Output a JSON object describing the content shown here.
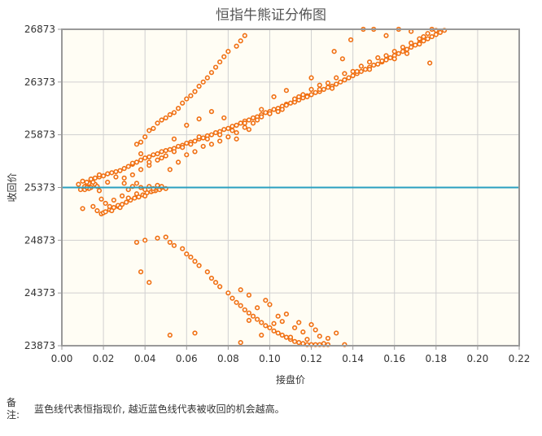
{
  "note": {
    "label": "备注:",
    "text": "蓝色线代表恒指现价, 越近蓝色线代表被收回的机会越高。"
  },
  "colors": {
    "plot_bg": "#fffdf4",
    "point": "#f07012",
    "reference_line": "#2aa0c0",
    "grid": "#d0d0d0",
    "frame": "#999999"
  },
  "chart_data": {
    "type": "scatter",
    "title": "恒指牛熊证分佈图",
    "xlabel": "接盘价",
    "ylabel": "收回价",
    "xlim": [
      0,
      0.22
    ],
    "ylim": [
      23873,
      26873
    ],
    "x_ticks": [
      "0.00",
      "0.02",
      "0.04",
      "0.06",
      "0.08",
      "0.10",
      "0.12",
      "0.14",
      "0.16",
      "0.18",
      "0.20",
      "0.22"
    ],
    "y_ticks": [
      "23873",
      "24373",
      "24873",
      "25373",
      "25873",
      "26373",
      "26873"
    ],
    "grid": true,
    "reference_line": {
      "orientation": "horizontal",
      "y": 25373
    },
    "points": [
      [
        0.01,
        25173
      ],
      [
        0.011,
        25353
      ],
      [
        0.012,
        25393
      ],
      [
        0.013,
        25413
      ],
      [
        0.014,
        25373
      ],
      [
        0.016,
        25403
      ],
      [
        0.018,
        25343
      ],
      [
        0.015,
        25193
      ],
      [
        0.017,
        25153
      ],
      [
        0.019,
        25123
      ],
      [
        0.02,
        25133
      ],
      [
        0.021,
        25143
      ],
      [
        0.023,
        25163
      ],
      [
        0.025,
        25183
      ],
      [
        0.027,
        25193
      ],
      [
        0.029,
        25213
      ],
      [
        0.031,
        25233
      ],
      [
        0.033,
        25253
      ],
      [
        0.035,
        25273
      ],
      [
        0.037,
        25283
      ],
      [
        0.039,
        25303
      ],
      [
        0.041,
        25323
      ],
      [
        0.043,
        25333
      ],
      [
        0.045,
        25343
      ],
      [
        0.047,
        25353
      ],
      [
        0.012,
        25423
      ],
      [
        0.014,
        25443
      ],
      [
        0.016,
        25463
      ],
      [
        0.018,
        25473
      ],
      [
        0.02,
        25483
      ],
      [
        0.022,
        25503
      ],
      [
        0.024,
        25513
      ],
      [
        0.026,
        25523
      ],
      [
        0.028,
        25533
      ],
      [
        0.03,
        25553
      ],
      [
        0.032,
        25573
      ],
      [
        0.034,
        25593
      ],
      [
        0.036,
        25613
      ],
      [
        0.038,
        25633
      ],
      [
        0.04,
        25653
      ],
      [
        0.042,
        25663
      ],
      [
        0.044,
        25683
      ],
      [
        0.046,
        25693
      ],
      [
        0.048,
        25713
      ],
      [
        0.05,
        25723
      ],
      [
        0.052,
        25733
      ],
      [
        0.054,
        25743
      ],
      [
        0.056,
        25763
      ],
      [
        0.058,
        25773
      ],
      [
        0.06,
        25793
      ],
      [
        0.062,
        25803
      ],
      [
        0.064,
        25813
      ],
      [
        0.066,
        25833
      ],
      [
        0.068,
        25843
      ],
      [
        0.07,
        25863
      ],
      [
        0.072,
        25873
      ],
      [
        0.074,
        25893
      ],
      [
        0.076,
        25903
      ],
      [
        0.078,
        25923
      ],
      [
        0.08,
        25933
      ],
      [
        0.082,
        25953
      ],
      [
        0.084,
        25963
      ],
      [
        0.086,
        25983
      ],
      [
        0.088,
        26003
      ],
      [
        0.09,
        26013
      ],
      [
        0.092,
        26033
      ],
      [
        0.094,
        26043
      ],
      [
        0.096,
        26063
      ],
      [
        0.098,
        26083
      ],
      [
        0.1,
        26093
      ],
      [
        0.102,
        26113
      ],
      [
        0.104,
        26123
      ],
      [
        0.106,
        26143
      ],
      [
        0.108,
        26163
      ],
      [
        0.11,
        26173
      ],
      [
        0.112,
        26193
      ],
      [
        0.114,
        26203
      ],
      [
        0.116,
        26223
      ],
      [
        0.118,
        26243
      ],
      [
        0.12,
        26253
      ],
      [
        0.122,
        26273
      ],
      [
        0.124,
        26283
      ],
      [
        0.126,
        26303
      ],
      [
        0.128,
        26323
      ],
      [
        0.13,
        26333
      ],
      [
        0.132,
        26353
      ],
      [
        0.134,
        26373
      ],
      [
        0.136,
        26393
      ],
      [
        0.138,
        26413
      ],
      [
        0.14,
        26433
      ],
      [
        0.142,
        26453
      ],
      [
        0.144,
        26473
      ],
      [
        0.146,
        26493
      ],
      [
        0.148,
        26513
      ],
      [
        0.15,
        26533
      ],
      [
        0.152,
        26543
      ],
      [
        0.154,
        26563
      ],
      [
        0.156,
        26583
      ],
      [
        0.158,
        26603
      ],
      [
        0.16,
        26623
      ],
      [
        0.162,
        26643
      ],
      [
        0.164,
        26663
      ],
      [
        0.166,
        26683
      ],
      [
        0.168,
        26703
      ],
      [
        0.17,
        26723
      ],
      [
        0.172,
        26743
      ],
      [
        0.174,
        26763
      ],
      [
        0.176,
        26783
      ],
      [
        0.178,
        26803
      ],
      [
        0.18,
        26823
      ],
      [
        0.182,
        26843
      ],
      [
        0.184,
        26863
      ],
      [
        0.03,
        25463
      ],
      [
        0.034,
        25493
      ],
      [
        0.038,
        25543
      ],
      [
        0.042,
        25583
      ],
      [
        0.046,
        25633
      ],
      [
        0.05,
        25673
      ],
      [
        0.054,
        25713
      ],
      [
        0.058,
        25753
      ],
      [
        0.062,
        25783
      ],
      [
        0.066,
        25853
      ],
      [
        0.07,
        25833
      ],
      [
        0.076,
        25873
      ],
      [
        0.082,
        25913
      ],
      [
        0.088,
        25983
      ],
      [
        0.094,
        26013
      ],
      [
        0.1,
        26073
      ],
      [
        0.106,
        26113
      ],
      [
        0.112,
        26183
      ],
      [
        0.118,
        26233
      ],
      [
        0.124,
        26303
      ],
      [
        0.13,
        26313
      ],
      [
        0.136,
        26393
      ],
      [
        0.142,
        26473
      ],
      [
        0.148,
        26493
      ],
      [
        0.154,
        26573
      ],
      [
        0.16,
        26593
      ],
      [
        0.166,
        26643
      ],
      [
        0.172,
        26733
      ],
      [
        0.036,
        25413
      ],
      [
        0.038,
        25373
      ],
      [
        0.04,
        25353
      ],
      [
        0.042,
        25383
      ],
      [
        0.044,
        25343
      ],
      [
        0.046,
        25393
      ],
      [
        0.048,
        25373
      ],
      [
        0.05,
        25363
      ],
      [
        0.034,
        25383
      ],
      [
        0.032,
        25353
      ],
      [
        0.036,
        25783
      ],
      [
        0.038,
        25803
      ],
      [
        0.04,
        25853
      ],
      [
        0.042,
        25913
      ],
      [
        0.044,
        25933
      ],
      [
        0.046,
        25983
      ],
      [
        0.048,
        26013
      ],
      [
        0.05,
        26033
      ],
      [
        0.052,
        26063
      ],
      [
        0.054,
        26083
      ],
      [
        0.056,
        26123
      ],
      [
        0.058,
        26173
      ],
      [
        0.06,
        26213
      ],
      [
        0.062,
        26243
      ],
      [
        0.064,
        26283
      ],
      [
        0.066,
        26333
      ],
      [
        0.068,
        26373
      ],
      [
        0.07,
        26413
      ],
      [
        0.072,
        26463
      ],
      [
        0.074,
        26513
      ],
      [
        0.076,
        26563
      ],
      [
        0.078,
        26613
      ],
      [
        0.08,
        26663
      ],
      [
        0.084,
        26713
      ],
      [
        0.086,
        26763
      ],
      [
        0.088,
        26813
      ],
      [
        0.036,
        24853
      ],
      [
        0.038,
        24573
      ],
      [
        0.04,
        24873
      ],
      [
        0.042,
        24473
      ],
      [
        0.046,
        24893
      ],
      [
        0.05,
        24903
      ],
      [
        0.052,
        24853
      ],
      [
        0.054,
        24823
      ],
      [
        0.058,
        24793
      ],
      [
        0.06,
        24743
      ],
      [
        0.062,
        24713
      ],
      [
        0.064,
        24673
      ],
      [
        0.066,
        24633
      ],
      [
        0.07,
        24573
      ],
      [
        0.072,
        24513
      ],
      [
        0.074,
        24473
      ],
      [
        0.076,
        24433
      ],
      [
        0.08,
        24373
      ],
      [
        0.082,
        24323
      ],
      [
        0.084,
        24283
      ],
      [
        0.086,
        24253
      ],
      [
        0.088,
        24213
      ],
      [
        0.09,
        24183
      ],
      [
        0.092,
        24153
      ],
      [
        0.094,
        24123
      ],
      [
        0.096,
        24093
      ],
      [
        0.098,
        24063
      ],
      [
        0.1,
        24043
      ],
      [
        0.102,
        24013
      ],
      [
        0.104,
        23993
      ],
      [
        0.106,
        23973
      ],
      [
        0.108,
        23953
      ],
      [
        0.11,
        23933
      ],
      [
        0.112,
        23913
      ],
      [
        0.114,
        23903
      ],
      [
        0.116,
        23893
      ],
      [
        0.118,
        23883
      ],
      [
        0.12,
        23883
      ],
      [
        0.122,
        23883
      ],
      [
        0.124,
        23883
      ],
      [
        0.126,
        23883
      ],
      [
        0.128,
        23883
      ],
      [
        0.136,
        23883
      ],
      [
        0.052,
        23973
      ],
      [
        0.064,
        23993
      ],
      [
        0.086,
        24403
      ],
      [
        0.09,
        24353
      ],
      [
        0.094,
        24233
      ],
      [
        0.098,
        24303
      ],
      [
        0.1,
        24263
      ],
      [
        0.104,
        24153
      ],
      [
        0.108,
        24173
      ],
      [
        0.112,
        24043
      ],
      [
        0.116,
        24003
      ],
      [
        0.12,
        24073
      ],
      [
        0.124,
        23963
      ],
      [
        0.128,
        23943
      ],
      [
        0.132,
        23993
      ],
      [
        0.086,
        23903
      ],
      [
        0.09,
        24113
      ],
      [
        0.096,
        23973
      ],
      [
        0.102,
        24083
      ],
      [
        0.106,
        24103
      ],
      [
        0.11,
        23953
      ],
      [
        0.114,
        24093
      ],
      [
        0.118,
        23933
      ],
      [
        0.122,
        24023
      ],
      [
        0.126,
        23893
      ],
      [
        0.008,
        25403
      ],
      [
        0.009,
        25353
      ],
      [
        0.011,
        25383
      ],
      [
        0.013,
        25363
      ],
      [
        0.015,
        25423
      ],
      [
        0.017,
        25383
      ],
      [
        0.019,
        25263
      ],
      [
        0.021,
        25223
      ],
      [
        0.023,
        25193
      ],
      [
        0.025,
        25253
      ],
      [
        0.027,
        25203
      ],
      [
        0.029,
        25293
      ],
      [
        0.131,
        26663
      ],
      [
        0.135,
        26593
      ],
      [
        0.139,
        26773
      ],
      [
        0.145,
        26873
      ],
      [
        0.15,
        26873
      ],
      [
        0.156,
        26813
      ],
      [
        0.162,
        26873
      ],
      [
        0.168,
        26853
      ],
      [
        0.174,
        26803
      ],
      [
        0.178,
        26873
      ],
      [
        0.177,
        26553
      ],
      [
        0.12,
        26413
      ],
      [
        0.114,
        26233
      ],
      [
        0.108,
        26293
      ],
      [
        0.102,
        26233
      ],
      [
        0.096,
        26113
      ],
      [
        0.09,
        25923
      ],
      [
        0.084,
        25833
      ],
      [
        0.078,
        26033
      ],
      [
        0.072,
        26093
      ],
      [
        0.066,
        26023
      ],
      [
        0.06,
        25963
      ],
      [
        0.054,
        25833
      ],
      [
        0.048,
        25653
      ],
      [
        0.042,
        25613
      ],
      [
        0.038,
        25693
      ],
      [
        0.034,
        25603
      ],
      [
        0.03,
        25413
      ],
      [
        0.026,
        25473
      ],
      [
        0.022,
        25423
      ],
      [
        0.018,
        25493
      ],
      [
        0.014,
        25453
      ],
      [
        0.01,
        25433
      ],
      [
        0.012,
        25373
      ],
      [
        0.024,
        25153
      ],
      [
        0.028,
        25183
      ],
      [
        0.032,
        25273
      ],
      [
        0.036,
        25313
      ],
      [
        0.04,
        25293
      ],
      [
        0.044,
        25363
      ],
      [
        0.048,
        25383
      ],
      [
        0.052,
        25543
      ],
      [
        0.056,
        25613
      ],
      [
        0.06,
        25683
      ],
      [
        0.064,
        25713
      ],
      [
        0.068,
        25763
      ],
      [
        0.072,
        25783
      ],
      [
        0.076,
        25813
      ],
      [
        0.08,
        25853
      ],
      [
        0.084,
        25893
      ],
      [
        0.088,
        25943
      ],
      [
        0.092,
        25983
      ],
      [
        0.096,
        26043
      ],
      [
        0.1,
        26073
      ],
      [
        0.104,
        26093
      ],
      [
        0.108,
        26153
      ],
      [
        0.112,
        26213
      ],
      [
        0.116,
        26253
      ],
      [
        0.12,
        26303
      ],
      [
        0.124,
        26343
      ],
      [
        0.128,
        26363
      ],
      [
        0.132,
        26413
      ],
      [
        0.136,
        26453
      ],
      [
        0.14,
        26473
      ],
      [
        0.144,
        26523
      ],
      [
        0.148,
        26563
      ],
      [
        0.152,
        26603
      ],
      [
        0.156,
        26623
      ],
      [
        0.16,
        26663
      ],
      [
        0.164,
        26703
      ],
      [
        0.168,
        26743
      ],
      [
        0.172,
        26783
      ],
      [
        0.176,
        26833
      ],
      [
        0.18,
        26863
      ]
    ]
  }
}
